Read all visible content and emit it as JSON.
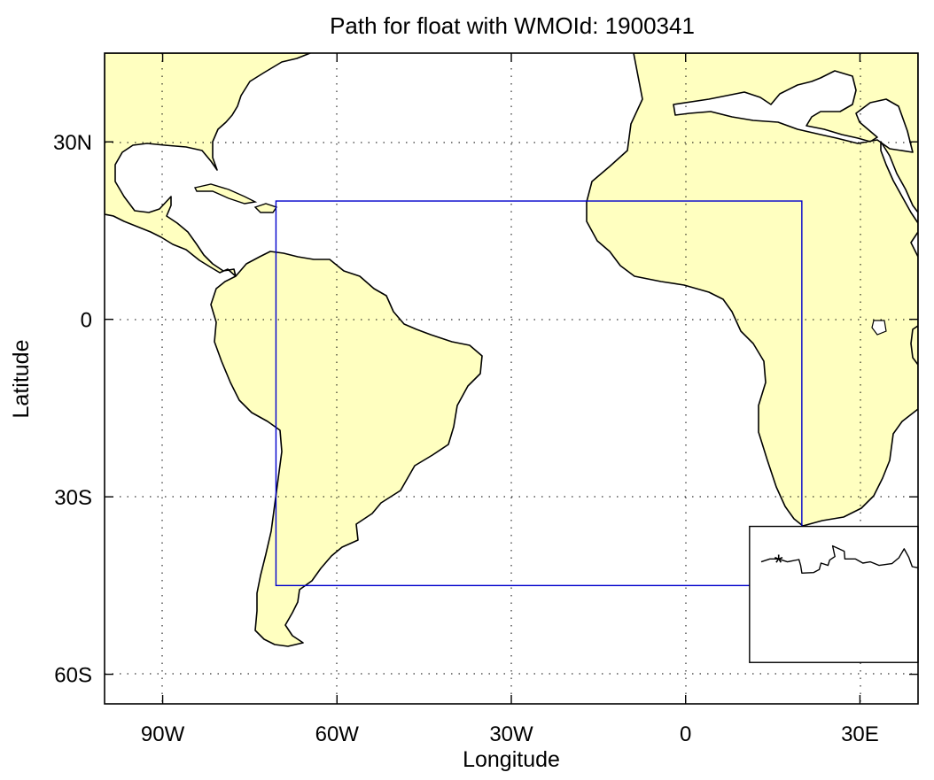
{
  "title": "Path for float with WMOId: 1900341",
  "xlabel": "Longitude",
  "ylabel": "Latitude",
  "map": {
    "lon_range": [
      -100,
      40
    ],
    "lat_range": [
      -65,
      45
    ],
    "land_color": "#ffffc0",
    "ocean_color": "#ffffff",
    "grid": "dotted",
    "x_ticks": [
      {
        "value": -90,
        "label": "90W"
      },
      {
        "value": -60,
        "label": "60W"
      },
      {
        "value": -30,
        "label": "30W"
      },
      {
        "value": 0,
        "label": "0"
      },
      {
        "value": 30,
        "label": "30E"
      }
    ],
    "y_ticks": [
      {
        "value": 30,
        "label": "30N"
      },
      {
        "value": 0,
        "label": "0"
      },
      {
        "value": -30,
        "label": "30S"
      },
      {
        "value": -60,
        "label": "60S"
      }
    ]
  },
  "region_box": {
    "color": "#0000cc",
    "lon_min": -70.5,
    "lon_max": 20,
    "lat_min": -45,
    "lat_max": 20
  },
  "inset": {
    "lon_min": 11,
    "lon_max": 40,
    "lat_min": -58,
    "lat_max": -35,
    "marker_symbol": "*",
    "marker": {
      "lon": 16,
      "lat": -40.5
    },
    "path": [
      [
        13.0,
        -41.0
      ],
      [
        14.5,
        -40.5
      ],
      [
        16.0,
        -40.5
      ],
      [
        17.5,
        -41.0
      ],
      [
        19.5,
        -40.6
      ],
      [
        19.8,
        -41.6
      ],
      [
        20.0,
        -42.9
      ],
      [
        22.0,
        -42.8
      ],
      [
        23.0,
        -42.3
      ],
      [
        23.3,
        -41.2
      ],
      [
        24.5,
        -41.6
      ],
      [
        24.8,
        -40.7
      ],
      [
        25.7,
        -40.1
      ],
      [
        25.3,
        -38.3
      ],
      [
        26.4,
        -38.8
      ],
      [
        27.3,
        -39.2
      ],
      [
        27.4,
        -40.5
      ],
      [
        29.2,
        -40.5
      ],
      [
        30.5,
        -41.2
      ],
      [
        31.8,
        -41.0
      ],
      [
        33.3,
        -41.6
      ],
      [
        35.5,
        -41.3
      ],
      [
        36.7,
        -40.3
      ],
      [
        37.6,
        -38.8
      ],
      [
        38.4,
        -40.2
      ],
      [
        39.0,
        -41.8
      ],
      [
        40.0,
        -42.0
      ]
    ]
  },
  "chart_data": {
    "type": "map",
    "title": "Path for float with WMOId: 1900341",
    "xlabel": "Longitude",
    "ylabel": "Latitude",
    "xlim": [
      -100,
      40
    ],
    "ylim": [
      -65,
      45
    ],
    "grid": true
  }
}
